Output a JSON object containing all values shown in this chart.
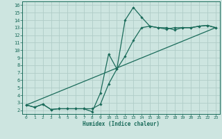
{
  "xlabel": "Humidex (Indice chaleur)",
  "xlim": [
    -0.5,
    23.5
  ],
  "ylim": [
    1.5,
    16.5
  ],
  "xticks": [
    0,
    1,
    2,
    3,
    4,
    5,
    6,
    7,
    8,
    9,
    10,
    11,
    12,
    13,
    14,
    15,
    16,
    17,
    18,
    19,
    20,
    21,
    22,
    23
  ],
  "yticks": [
    2,
    3,
    4,
    5,
    6,
    7,
    8,
    9,
    10,
    11,
    12,
    13,
    14,
    15,
    16
  ],
  "bg_color": "#cde5e0",
  "grid_color": "#b0cdc8",
  "line_color": "#1a6b5a",
  "line1_x": [
    0,
    1,
    2,
    3,
    4,
    5,
    6,
    7,
    8,
    9,
    10,
    11,
    12,
    13,
    14,
    15,
    16,
    17,
    18,
    19,
    20,
    21,
    22,
    23
  ],
  "line1_y": [
    2.7,
    2.4,
    2.8,
    2.1,
    2.2,
    2.2,
    2.2,
    2.2,
    1.8,
    4.3,
    9.5,
    7.5,
    14.0,
    15.7,
    14.4,
    13.2,
    13.0,
    13.0,
    12.7,
    13.0,
    13.0,
    13.2,
    13.3,
    13.0
  ],
  "line2_x": [
    0,
    1,
    2,
    3,
    4,
    5,
    6,
    7,
    8,
    9,
    10,
    11,
    12,
    13,
    14,
    15,
    16,
    17,
    18,
    19,
    20,
    21,
    22,
    23
  ],
  "line2_y": [
    2.7,
    2.4,
    2.8,
    2.1,
    2.2,
    2.2,
    2.2,
    2.2,
    2.2,
    2.8,
    5.5,
    7.5,
    9.2,
    11.3,
    13.0,
    13.2,
    13.0,
    12.8,
    13.0,
    13.0,
    13.0,
    13.2,
    13.3,
    13.0
  ],
  "line3_x": [
    0,
    23
  ],
  "line3_y": [
    2.7,
    13.0
  ]
}
